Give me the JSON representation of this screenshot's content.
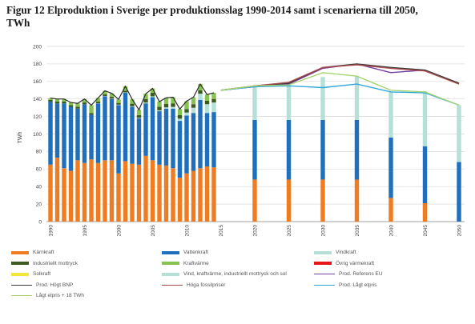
{
  "figure": {
    "caption_line1": "Figur 12 Elproduktion i Sverige per produktionsslag 1990-2014 samt i scenarierna till 2050,",
    "caption_line2": "TWh"
  },
  "chart_data": {
    "type": "bar",
    "ylabel": "TWh",
    "ylim": [
      0,
      200
    ],
    "yticks": [
      0,
      20,
      40,
      60,
      80,
      100,
      120,
      140,
      160,
      180,
      200
    ],
    "grid": true,
    "legend_position": "bottom",
    "historic": {
      "years": [
        1990,
        1991,
        1992,
        1993,
        1994,
        1995,
        1996,
        1997,
        1998,
        1999,
        2000,
        2001,
        2002,
        2003,
        2004,
        2005,
        2006,
        2007,
        2008,
        2009,
        2010,
        2011,
        2012,
        2013,
        2014
      ],
      "series": [
        {
          "name": "Kärnkraft",
          "color": "#f07c22",
          "values": [
            65,
            73,
            61,
            58,
            70,
            67,
            71,
            67,
            70,
            70,
            55,
            69,
            66,
            65,
            75,
            70,
            65,
            64,
            61,
            50,
            55,
            58,
            61,
            63,
            62
          ]
        },
        {
          "name": "Vattenkraft",
          "color": "#1f6fbd",
          "values": [
            72,
            62,
            74,
            73,
            59,
            67,
            51,
            68,
            73,
            70,
            78,
            78,
            65,
            53,
            60,
            72,
            61,
            65,
            68,
            65,
            66,
            66,
            78,
            61,
            63
          ]
        },
        {
          "name": "Vindkraft",
          "color": "#b5e0d8",
          "values": [
            0,
            0,
            0,
            0,
            0,
            0,
            0,
            0.2,
            0.3,
            0.4,
            0.5,
            0.5,
            0.6,
            0.6,
            0.9,
            1,
            1,
            1.4,
            2,
            2.5,
            3.5,
            6,
            7,
            10,
            11
          ]
        },
        {
          "name": "Industriellt mottryck",
          "color": "#3b5a1e",
          "values": [
            2,
            2,
            2,
            2,
            2,
            2,
            2,
            2,
            2,
            2,
            2,
            2,
            3,
            3,
            4,
            4,
            4,
            4,
            4,
            4,
            4,
            4,
            4,
            4,
            4
          ]
        },
        {
          "name": "Kraftvärme",
          "color": "#86c450",
          "values": [
            2,
            3,
            3,
            3,
            4,
            4,
            9,
            4,
            4,
            4,
            4,
            5,
            5,
            6,
            6,
            5,
            6,
            7,
            7,
            7,
            9,
            8,
            7,
            7,
            7
          ]
        }
      ]
    },
    "scenario": {
      "years": [
        2020,
        2025,
        2030,
        2035,
        2040,
        2045,
        2050
      ],
      "series": [
        {
          "name": "Kärnkraft",
          "color": "#f07c22",
          "values": [
            48,
            48,
            48,
            48,
            27,
            21,
            0
          ]
        },
        {
          "name": "Vattenkraft",
          "color": "#1f6fbd",
          "values": [
            68,
            68,
            68,
            68,
            69,
            65,
            68
          ]
        },
        {
          "name": "Vind, kraftvärme, industriellt mottryck och sol",
          "color": "#b5e0d8",
          "values": [
            38,
            41,
            49,
            50,
            52,
            63,
            65
          ]
        }
      ]
    },
    "lines": {
      "years": [
        2015,
        2020,
        2025,
        2030,
        2035,
        2040,
        2045,
        2050
      ],
      "series": [
        {
          "name": "Prod. Referens EU",
          "color": "#7a3da2",
          "values": [
            150,
            154,
            157,
            175,
            180,
            170,
            173,
            158
          ]
        },
        {
          "name": "Prod. Högt BNP",
          "color": "#3a3a3a",
          "values": [
            150,
            155,
            158,
            176,
            180,
            176,
            173,
            158
          ]
        },
        {
          "name": "Höga fossilpriser",
          "color": "#a84a4a",
          "values": [
            150,
            155,
            159,
            176,
            179,
            175,
            172,
            157
          ]
        },
        {
          "name": "Prod. Lågt elpris",
          "color": "#2fa8dc",
          "values": [
            150,
            154,
            155,
            153,
            157,
            148,
            147,
            133
          ]
        },
        {
          "name": "Lågt elpris + 18 TWh",
          "color": "#a6d46e",
          "values": [
            150,
            155,
            156,
            170,
            166,
            150,
            148,
            133
          ]
        }
      ]
    },
    "xtick_labels": [
      "1990",
      "1995",
      "2000",
      "2005",
      "2010",
      "2015",
      "2020",
      "2025",
      "2030",
      "2035",
      "2040",
      "2045",
      "2050"
    ],
    "legend": [
      {
        "name": "Kärnkraft",
        "kind": "swatch",
        "color": "#f07c22"
      },
      {
        "name": "Vattenkraft",
        "kind": "swatch",
        "color": "#1f6fbd"
      },
      {
        "name": "Vindkraft",
        "kind": "swatch",
        "color": "#b5e0d8"
      },
      {
        "name": "Industriellt mottryck",
        "kind": "swatch",
        "color": "#3b5a1e"
      },
      {
        "name": "Kraftvärme",
        "kind": "swatch",
        "color": "#86c450"
      },
      {
        "name": "Övrig värmekraft",
        "kind": "swatch",
        "color": "#e8141b"
      },
      {
        "name": "Solkraft",
        "kind": "swatch",
        "color": "#f5e53a"
      },
      {
        "name": "Vind, kraftvärme, industriellt mottryck och sol",
        "kind": "swatch",
        "color": "#b5e0d8"
      },
      {
        "name": "Prod. Referens EU",
        "kind": "line",
        "color": "#7a3da2"
      },
      {
        "name": "Prod. Högt BNP",
        "kind": "line",
        "color": "#3a3a3a"
      },
      {
        "name": "Höga fossilpriser",
        "kind": "line",
        "color": "#a84a4a"
      },
      {
        "name": "Prod. Lågt elpris",
        "kind": "line",
        "color": "#2fa8dc"
      },
      {
        "name": "Lågt elpris + 18 TWh",
        "kind": "line",
        "color": "#a6d46e"
      }
    ]
  }
}
